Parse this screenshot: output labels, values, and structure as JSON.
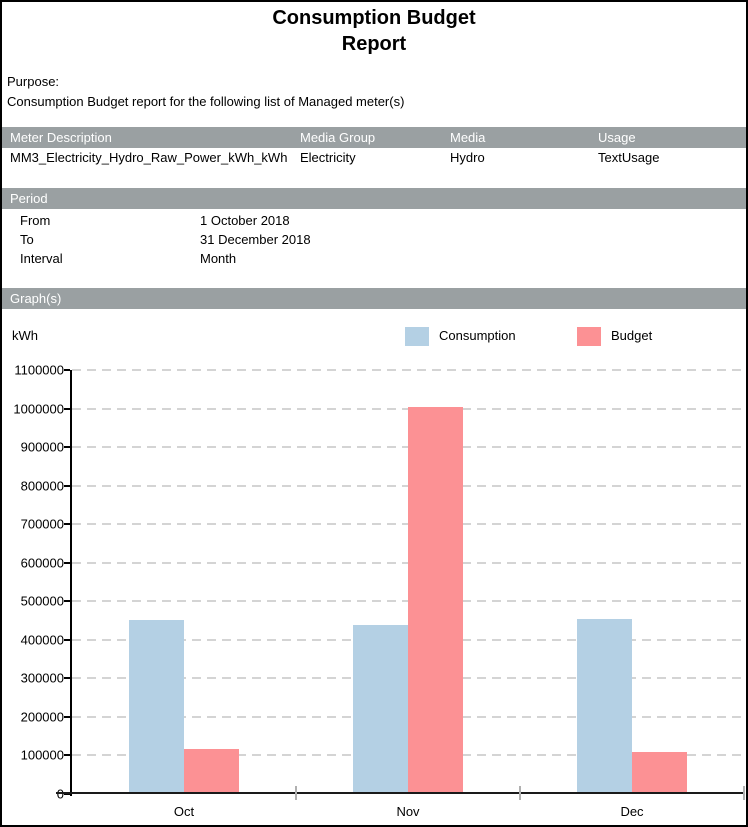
{
  "page": {
    "title_line1": "Consumption Budget",
    "title_line2": "Report",
    "purpose_label": "Purpose:",
    "purpose_text": "Consumption Budget report for the following list of Managed meter(s)"
  },
  "meter_table": {
    "section_label": "Meter Description",
    "headers": [
      "Meter Description",
      "Media Group",
      "Media",
      "Usage"
    ],
    "rows": [
      [
        "MM3_Electricity_Hydro_Raw_Power_kWh_kWh",
        "Electricity",
        "Hydro",
        "TextUsage"
      ]
    ]
  },
  "period": {
    "section_label": "Period",
    "rows": [
      {
        "label": "From",
        "value": "1 October 2018"
      },
      {
        "label": "To",
        "value": "31 December 2018"
      },
      {
        "label": "Interval",
        "value": "Month"
      }
    ]
  },
  "graphs": {
    "section_label": "Graph(s)",
    "unit_label": "kWh",
    "legend": [
      {
        "label": "Consumption",
        "color": "#b4d0e4"
      },
      {
        "label": "Budget",
        "color": "#fc9194"
      }
    ]
  },
  "chart_data": {
    "type": "bar",
    "categories": [
      "Oct",
      "Nov",
      "Dec"
    ],
    "series": [
      {
        "name": "Consumption",
        "color": "#b4d0e4",
        "values": [
          446000,
          433000,
          448000
        ]
      },
      {
        "name": "Budget",
        "color": "#fc9194",
        "values": [
          111000,
          1000000,
          103000
        ]
      }
    ],
    "title": "",
    "xlabel": "",
    "ylabel": "kWh",
    "ylim": [
      0,
      1100000
    ],
    "ytick_step": 100000,
    "grid": "horizontal-dashed",
    "legend_position": "top"
  },
  "colors": {
    "section_header_bg": "#9aa0a2",
    "section_header_text": "#ffffff",
    "grid_line": "#d4d4d4",
    "axis": "#000000",
    "category_tick": "#b0b0b0",
    "page_border": "#000000"
  }
}
